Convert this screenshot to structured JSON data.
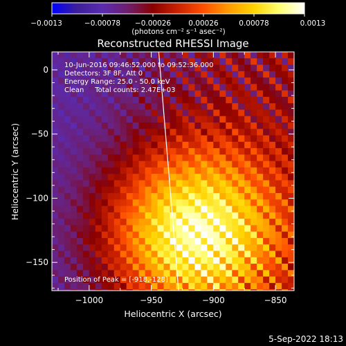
{
  "chart_data": {
    "type": "heatmap",
    "title": "Reconstructed RHESSI Image",
    "xlabel": "Heliocentric X (arcsec)",
    "ylabel": "Heliocentric Y (arcsec)",
    "xlim": [
      -1030,
      -835
    ],
    "ylim": [
      -172,
      14
    ],
    "x_ticks": [
      -1000,
      -950,
      -900,
      -850
    ],
    "x_tick_labels": [
      "−1000",
      "−950",
      "−900",
      "−850"
    ],
    "y_ticks": [
      0,
      -50,
      -100,
      -150
    ],
    "y_tick_labels": [
      "0",
      "−50",
      "−100",
      "−150"
    ],
    "colorbar": {
      "range": [
        -0.0013,
        0.0013
      ],
      "ticks": [
        -0.0013,
        -0.00078,
        -0.00026,
        0.00026,
        0.00078,
        0.0013
      ],
      "tick_labels": [
        "−0.0013",
        "−0.00078",
        "−0.00026",
        "0.00026",
        "0.00078",
        "0.0013"
      ],
      "unit_label": "(photons cm⁻² s⁻¹ asec⁻²)",
      "colors": [
        "#0000ff",
        "#3c1f9a",
        "#5a2bb0",
        "#6e1e6e",
        "#8a0000",
        "#cc2200",
        "#ff5000",
        "#ff9b00",
        "#ffd400",
        "#ffff70",
        "#ffffff"
      ]
    },
    "annotations": [
      "10-Jun-2016 09:46:52.000 to 09:52:36.000",
      "Detectors: 3F 8F, Att 0",
      "Energy Range: 25.0 - 50.0 keV",
      "Clean     Total counts: 2.47E+03"
    ],
    "peak_label": "Position of Peak = [-918,-128]",
    "peak": [
      -918,
      -128
    ],
    "limb_line": [
      [
        -944,
        14
      ],
      [
        -928,
        -172
      ]
    ]
  },
  "footer": {
    "timestamp": "5-Sep-2022 18:13"
  }
}
